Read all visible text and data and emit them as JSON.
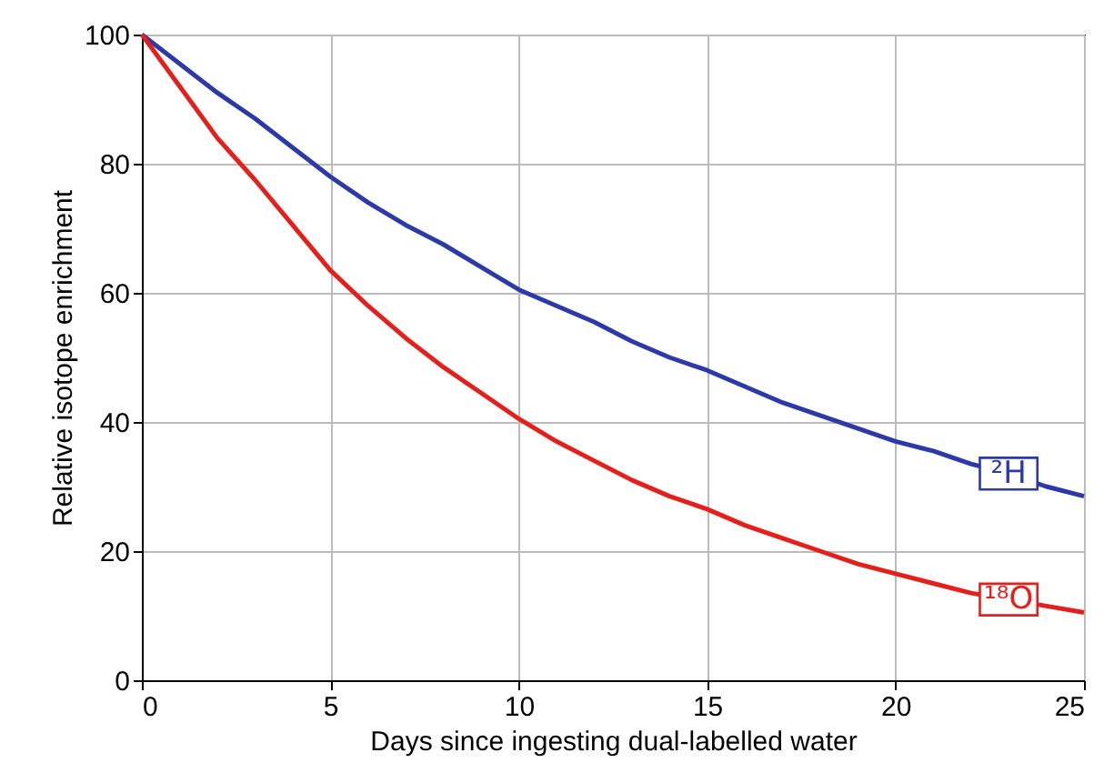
{
  "chart_data": {
    "type": "line",
    "xlabel": "Days since ingesting dual-labelled water",
    "ylabel": "Relative isotope enrichment",
    "x": [
      0,
      1,
      2,
      3,
      4,
      5,
      6,
      7,
      8,
      9,
      10,
      11,
      12,
      13,
      14,
      15,
      16,
      17,
      18,
      19,
      20,
      21,
      22,
      23,
      24,
      25
    ],
    "series": [
      {
        "name": "²H",
        "color": "#2b3aa8",
        "values": [
          100,
          95.5,
          91,
          87,
          82.5,
          78,
          74,
          70.5,
          67.5,
          64,
          60.5,
          58,
          55.5,
          52.5,
          50,
          48,
          45.5,
          43,
          41,
          39,
          37,
          35.5,
          33.5,
          32,
          30,
          28.5
        ]
      },
      {
        "name": "¹⁸O",
        "color": "#e3201b",
        "values": [
          100,
          92,
          84,
          77.5,
          70.5,
          63.5,
          58,
          53,
          48.5,
          44.5,
          40.5,
          37,
          34,
          31,
          28.5,
          26.5,
          24,
          22,
          20,
          18,
          16.5,
          15,
          13.5,
          12.5,
          11.5,
          10.5
        ]
      }
    ],
    "xlim": [
      0,
      25
    ],
    "xticks": [
      0,
      5,
      10,
      15,
      20,
      25
    ],
    "ylim": [
      0,
      100
    ],
    "yticks": [
      0,
      20,
      40,
      60,
      80,
      100
    ],
    "grid": true,
    "marker": "none",
    "line_style": "solid"
  }
}
